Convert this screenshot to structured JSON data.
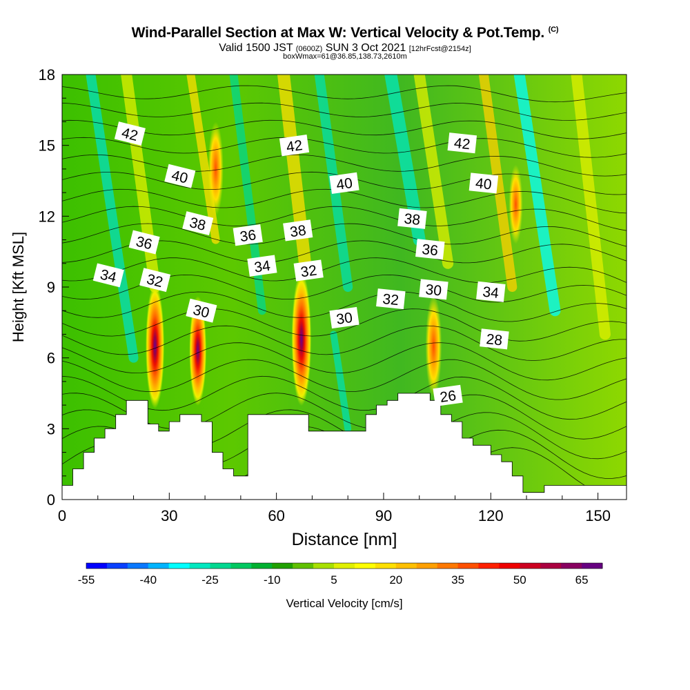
{
  "title": {
    "main": "Wind-Parallel Section at Max W: Vertical Velocity & Pot.Temp.",
    "copyright": "(C)",
    "valid_prefix": "Valid 1500 JST",
    "valid_utc": "(0600Z)",
    "valid_date": "SUN 3 Oct 2021",
    "forecast": "[12hrFcst@2154z]",
    "boxinfo": "boxWmax=61@36.85,138.73,2610m"
  },
  "chart_data": {
    "type": "heatmap",
    "xlabel": "Distance [nm]",
    "ylabel": "Height [Kft MSL]",
    "xlim": [
      0,
      158
    ],
    "ylim": [
      0,
      18
    ],
    "xticks": [
      0,
      30,
      60,
      90,
      120,
      150
    ],
    "yticks": [
      0,
      3,
      6,
      9,
      12,
      15,
      18
    ],
    "colorbar": {
      "label": "Vertical Velocity [cm/s]",
      "ticks": [
        "-55",
        "-40",
        "-25",
        "-10",
        "5",
        "20",
        "35",
        "50",
        "65"
      ],
      "colors": [
        "#0000ff",
        "#0a40ff",
        "#0a78ff",
        "#00b4ff",
        "#00ffff",
        "#00e8c0",
        "#00d890",
        "#00c860",
        "#00b030",
        "#20a000",
        "#60c000",
        "#a8e000",
        "#e0f000",
        "#ffff00",
        "#ffe000",
        "#ffc000",
        "#ffa000",
        "#ff7800",
        "#ff5000",
        "#ff2000",
        "#ee0000",
        "#cc0020",
        "#aa0040",
        "#880060",
        "#660080"
      ]
    },
    "updraft_cores": [
      {
        "x": 26,
        "y": 6.5,
        "w": 55
      },
      {
        "x": 38,
        "y": 6.3,
        "w": 45
      },
      {
        "x": 43,
        "y": 14.0,
        "w": 35
      },
      {
        "x": 67,
        "y": 6.8,
        "w": 61
      },
      {
        "x": 104,
        "y": 6.5,
        "w": 40
      },
      {
        "x": 127,
        "y": 12.5,
        "w": 25
      }
    ],
    "theta_contours": [
      {
        "label": "26",
        "x": 108,
        "y": 4.4
      },
      {
        "label": "28",
        "x": 121,
        "y": 6.8
      },
      {
        "label": "30",
        "x": 39,
        "y": 8.0
      },
      {
        "label": "30",
        "x": 79,
        "y": 7.7
      },
      {
        "label": "30",
        "x": 104,
        "y": 8.9
      },
      {
        "label": "32",
        "x": 26,
        "y": 9.3
      },
      {
        "label": "32",
        "x": 69,
        "y": 9.7
      },
      {
        "label": "32",
        "x": 92,
        "y": 8.5
      },
      {
        "label": "34",
        "x": 13,
        "y": 9.5
      },
      {
        "label": "34",
        "x": 56,
        "y": 9.9
      },
      {
        "label": "34",
        "x": 120,
        "y": 8.8
      },
      {
        "label": "36",
        "x": 23,
        "y": 10.9
      },
      {
        "label": "36",
        "x": 52,
        "y": 11.2
      },
      {
        "label": "36",
        "x": 103,
        "y": 10.6
      },
      {
        "label": "38",
        "x": 38,
        "y": 11.7
      },
      {
        "label": "38",
        "x": 66,
        "y": 11.4
      },
      {
        "label": "38",
        "x": 98,
        "y": 11.9
      },
      {
        "label": "40",
        "x": 33,
        "y": 13.7
      },
      {
        "label": "40",
        "x": 79,
        "y": 13.4
      },
      {
        "label": "40",
        "x": 118,
        "y": 13.4
      },
      {
        "label": "42",
        "x": 19,
        "y": 15.5
      },
      {
        "label": "42",
        "x": 65,
        "y": 15.0
      },
      {
        "label": "42",
        "x": 112,
        "y": 15.1
      }
    ],
    "terrain": [
      [
        0,
        0.6
      ],
      [
        3,
        0.6
      ],
      [
        3,
        1.3
      ],
      [
        6,
        1.3
      ],
      [
        6,
        2.0
      ],
      [
        9,
        2.0
      ],
      [
        9,
        2.6
      ],
      [
        12,
        2.6
      ],
      [
        12,
        3.0
      ],
      [
        15,
        3.0
      ],
      [
        15,
        3.6
      ],
      [
        18,
        3.6
      ],
      [
        18,
        4.2
      ],
      [
        24,
        4.2
      ],
      [
        24,
        3.2
      ],
      [
        27,
        3.2
      ],
      [
        27,
        2.9
      ],
      [
        30,
        2.9
      ],
      [
        30,
        3.3
      ],
      [
        33,
        3.3
      ],
      [
        33,
        3.6
      ],
      [
        39,
        3.6
      ],
      [
        39,
        3.3
      ],
      [
        42,
        3.3
      ],
      [
        42,
        2.0
      ],
      [
        45,
        2.0
      ],
      [
        45,
        1.3
      ],
      [
        48,
        1.3
      ],
      [
        48,
        1.0
      ],
      [
        52,
        1.0
      ],
      [
        52,
        3.6
      ],
      [
        69,
        3.6
      ],
      [
        69,
        2.9
      ],
      [
        85,
        2.9
      ],
      [
        85,
        3.6
      ],
      [
        88,
        3.6
      ],
      [
        88,
        4.0
      ],
      [
        91,
        4.0
      ],
      [
        91,
        4.2
      ],
      [
        94,
        4.2
      ],
      [
        94,
        4.5
      ],
      [
        103,
        4.5
      ],
      [
        103,
        4.2
      ],
      [
        106,
        4.2
      ],
      [
        106,
        3.6
      ],
      [
        109,
        3.6
      ],
      [
        109,
        3.3
      ],
      [
        112,
        3.3
      ],
      [
        112,
        2.6
      ],
      [
        115,
        2.6
      ],
      [
        115,
        2.3
      ],
      [
        120,
        2.3
      ],
      [
        120,
        1.9
      ],
      [
        123,
        1.9
      ],
      [
        123,
        1.6
      ],
      [
        126,
        1.6
      ],
      [
        126,
        1.0
      ],
      [
        129,
        1.0
      ],
      [
        129,
        0.3
      ],
      [
        135,
        0.3
      ],
      [
        135,
        0.6
      ],
      [
        158,
        0.6
      ]
    ]
  }
}
